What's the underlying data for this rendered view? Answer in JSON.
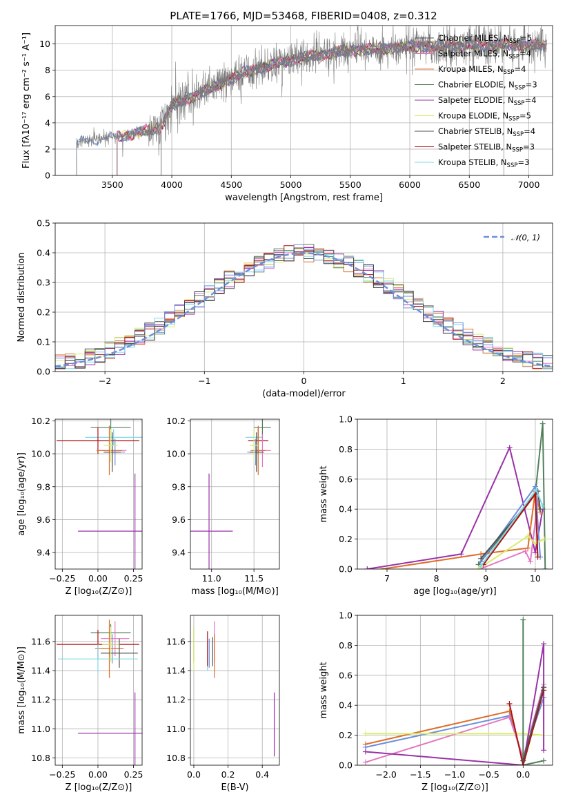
{
  "colors": [
    "#e377c2",
    "#dd6f2a",
    "#507f5a",
    "#9932a8",
    "#d9ec6a",
    "#505050",
    "#b01010",
    "#7fd8e6",
    "#6a8fdc",
    "#7a7a7a"
  ],
  "chart_data": [
    {
      "id": "spectrum",
      "type": "line",
      "title": "PLATE=1766, MJD=53468, FIBERID=0408, z=0.312",
      "xlabel": "wavelength [Angstrom, rest frame]",
      "ylabel": "Flux [fλ10⁻¹⁷ erg cm⁻² s⁻¹ A⁻¹]",
      "xlim": [
        3020,
        7200
      ],
      "ylim": [
        0,
        11.4
      ],
      "xticks": [
        3500,
        4000,
        4500,
        5000,
        5500,
        6000,
        6500,
        7000
      ],
      "yticks": [
        0,
        2,
        4,
        6,
        8,
        10
      ],
      "legend_position": "top-right",
      "data_range": [
        3200,
        7150
      ],
      "continuum_knots": [
        [
          3200,
          2.5
        ],
        [
          3500,
          2.9
        ],
        [
          3700,
          3.2
        ],
        [
          3900,
          3.6
        ],
        [
          4000,
          5.3
        ],
        [
          4300,
          6.5
        ],
        [
          4600,
          7.8
        ],
        [
          5000,
          8.8
        ],
        [
          5500,
          9.5
        ],
        [
          6000,
          9.8
        ],
        [
          6500,
          9.9
        ],
        [
          7150,
          9.9
        ]
      ],
      "legend": [
        {
          "label": "Chabrier MILES, N",
          "sub": "SSP",
          "tail": "=5"
        },
        {
          "label": "Salpeter MILES, N",
          "sub": "SSP",
          "tail": "=4"
        },
        {
          "label": "Kroupa MILES, N",
          "sub": "SSP",
          "tail": "=4"
        },
        {
          "label": "Chabrier ELODIE, N",
          "sub": "SSP",
          "tail": "=3"
        },
        {
          "label": "Salpeter ELODIE, N",
          "sub": "SSP",
          "tail": "=4"
        },
        {
          "label": "Kroupa ELODIE, N",
          "sub": "SSP",
          "tail": "=5"
        },
        {
          "label": "Chabrier STELIB, N",
          "sub": "SSP",
          "tail": "=4"
        },
        {
          "label": "Salpeter STELIB, N",
          "sub": "SSP",
          "tail": "=3"
        },
        {
          "label": "Kroupa STELIB, N",
          "sub": "SSP",
          "tail": "=3"
        }
      ]
    },
    {
      "id": "residuals",
      "type": "histogram",
      "xlabel": "(data-model)/error",
      "ylabel": "Normed distribution",
      "xlim": [
        -2.5,
        2.5
      ],
      "ylim": [
        0,
        0.5
      ],
      "xticks": [
        -2,
        -1,
        0,
        1,
        2
      ],
      "yticks": [
        0.0,
        0.1,
        0.2,
        0.3,
        0.4,
        0.5
      ],
      "legend_position": "top-right",
      "legend": "𝒩(0, 1)",
      "bin_width": 0.1
    },
    {
      "id": "age_vs_Z",
      "type": "errorbar",
      "xlabel": "Z [log₁₀(Z/Z⊙)]",
      "ylabel": "age  [log₁₀(age/yr)]",
      "xlim": [
        -0.3,
        0.31
      ],
      "ylim": [
        9.3,
        10.21
      ],
      "xticks": [
        -0.25,
        0.0,
        0.25
      ],
      "yticks": [
        9.4,
        9.6,
        9.8,
        10.0,
        10.2
      ],
      "points": [
        {
          "c": 2,
          "x": 0.09,
          "y": 10.16,
          "xe": 0.14,
          "ye": 0.08
        },
        {
          "c": 7,
          "x": 0.11,
          "y": 10.1,
          "xe": 0.2,
          "ye": 0.05
        },
        {
          "c": 6,
          "x": 0.0,
          "y": 10.08,
          "xe": 0.29,
          "ye": 0.08
        },
        {
          "c": 0,
          "x": 0.1,
          "y": 10.02,
          "xe": 0.1,
          "ye": 0.1
        },
        {
          "c": 1,
          "x": 0.08,
          "y": 10.02,
          "xe": 0.09,
          "ye": 0.15
        },
        {
          "c": 8,
          "x": 0.12,
          "y": 10.01,
          "xe": 0.07,
          "ye": 0.08
        },
        {
          "c": 5,
          "x": 0.1,
          "y": 10.01,
          "xe": 0.06,
          "ye": 0.12
        },
        {
          "c": 4,
          "x": 0.09,
          "y": 10.05,
          "xe": 0.05,
          "ye": 0.1
        },
        {
          "c": 3,
          "x": 0.26,
          "y": 9.53,
          "xe": 0.4,
          "ye": 0.35
        }
      ]
    },
    {
      "id": "age_vs_mass",
      "type": "errorbar",
      "xlabel": "mass [log₁₀(M/M⊙)]",
      "ylabel": "",
      "xlim": [
        10.75,
        11.8
      ],
      "ylim": [
        9.3,
        10.21
      ],
      "xticks": [
        11.0,
        11.5
      ],
      "yticks": [
        9.4,
        9.6,
        9.8,
        10.0,
        10.2
      ],
      "points": [
        {
          "c": 2,
          "x": 11.6,
          "y": 10.16,
          "xe": 0.1,
          "ye": 0.08
        },
        {
          "c": 7,
          "x": 11.5,
          "y": 10.1,
          "xe": 0.1,
          "ye": 0.05
        },
        {
          "c": 6,
          "x": 11.55,
          "y": 10.08,
          "xe": 0.12,
          "ye": 0.08
        },
        {
          "c": 0,
          "x": 11.6,
          "y": 10.02,
          "xe": 0.1,
          "ye": 0.1
        },
        {
          "c": 1,
          "x": 11.55,
          "y": 10.02,
          "xe": 0.09,
          "ye": 0.15
        },
        {
          "c": 8,
          "x": 11.52,
          "y": 10.01,
          "xe": 0.1,
          "ye": 0.08
        },
        {
          "c": 5,
          "x": 11.53,
          "y": 10.01,
          "xe": 0.08,
          "ye": 0.12
        },
        {
          "c": 4,
          "x": 11.5,
          "y": 10.05,
          "xe": 0.05,
          "ye": 0.1
        },
        {
          "c": 3,
          "x": 10.97,
          "y": 9.53,
          "xe": 0.28,
          "ye": 0.35
        }
      ]
    },
    {
      "id": "weight_vs_age",
      "type": "line",
      "xlabel": "age  [log₁₀(age/yr)]",
      "ylabel": "mass weight",
      "xlim": [
        6.4,
        10.35
      ],
      "ylim": [
        0,
        1
      ],
      "xticks": [
        7,
        8,
        9,
        10
      ],
      "yticks": [
        0.0,
        0.2,
        0.4,
        0.6,
        0.8,
        1.0
      ],
      "series": [
        {
          "c": 3,
          "x": [
            6.6,
            8.5,
            9.48,
            10.0,
            10.15
          ],
          "y": [
            0.0,
            0.1,
            0.81,
            0.11,
            0.4
          ]
        },
        {
          "c": 2,
          "x": [
            8.85,
            10.0,
            10.15,
            10.2
          ],
          "y": [
            0.03,
            0.5,
            0.97,
            0.0
          ]
        },
        {
          "c": 1,
          "x": [
            6.9,
            8.9,
            9.85,
            10.0,
            10.1
          ],
          "y": [
            0.0,
            0.1,
            0.14,
            0.52,
            0.38
          ]
        },
        {
          "c": 0,
          "x": [
            8.88,
            9.8,
            9.9,
            10.05
          ],
          "y": [
            0.0,
            0.12,
            0.05,
            0.45
          ]
        },
        {
          "c": 8,
          "x": [
            8.9,
            10.0,
            10.1
          ],
          "y": [
            0.05,
            0.55,
            0.08
          ]
        },
        {
          "c": 4,
          "x": [
            8.85,
            9.85,
            10.0,
            10.18
          ],
          "y": [
            0.0,
            0.22,
            0.17,
            0.2
          ]
        },
        {
          "c": 5,
          "x": [
            8.9,
            10.05,
            10.1
          ],
          "y": [
            0.07,
            0.52,
            0.4
          ]
        },
        {
          "c": 6,
          "x": [
            8.95,
            10.0,
            10.05
          ],
          "y": [
            0.03,
            0.5,
            0.08
          ]
        },
        {
          "c": 7,
          "x": [
            8.9,
            10.02,
            10.15
          ],
          "y": [
            0.02,
            0.53,
            0.42
          ]
        }
      ]
    },
    {
      "id": "mass_vs_Z",
      "type": "errorbar",
      "xlabel": "Z [log₁₀(Z/Z⊙)]",
      "ylabel": "mass [log₁₀(M/M⊙)]",
      "xlim": [
        -0.3,
        0.31
      ],
      "ylim": [
        10.75,
        11.78
      ],
      "xticks": [
        -0.25,
        0.0,
        0.25
      ],
      "yticks": [
        10.8,
        11.0,
        11.2,
        11.4,
        11.6
      ],
      "points": [
        {
          "c": 2,
          "x": 0.09,
          "y": 11.66,
          "xe": 0.14,
          "ye": 0.06
        },
        {
          "c": 0,
          "x": 0.12,
          "y": 11.62,
          "xe": 0.1,
          "ye": 0.12
        },
        {
          "c": 6,
          "x": 0.0,
          "y": 11.58,
          "xe": 0.29,
          "ye": 0.1
        },
        {
          "c": 8,
          "x": 0.1,
          "y": 11.55,
          "xe": 0.08,
          "ye": 0.1
        },
        {
          "c": 1,
          "x": 0.08,
          "y": 11.55,
          "xe": 0.1,
          "ye": 0.2
        },
        {
          "c": 5,
          "x": 0.15,
          "y": 11.52,
          "xe": 0.13,
          "ye": 0.1
        },
        {
          "c": 7,
          "x": 0.0,
          "y": 11.48,
          "xe": 0.28,
          "ye": 0.1
        },
        {
          "c": 4,
          "x": 0.09,
          "y": 11.58,
          "xe": 0.06,
          "ye": 0.12
        },
        {
          "c": 3,
          "x": 0.26,
          "y": 10.97,
          "xe": 0.4,
          "ye": 0.28
        }
      ]
    },
    {
      "id": "mass_vs_ebv",
      "type": "errorbar",
      "xlabel": "E(B-V)",
      "ylabel": "",
      "xlim": [
        -0.02,
        0.5
      ],
      "ylim": [
        10.75,
        11.78
      ],
      "xticks": [
        0.0,
        0.2,
        0.4
      ],
      "yticks": [
        10.8,
        11.0,
        11.2,
        11.4,
        11.6
      ],
      "points": [
        {
          "c": 2,
          "x": 0.0,
          "y": 11.58,
          "xe": 0.0,
          "ye": 0.12
        },
        {
          "c": 4,
          "x": 0.0,
          "y": 11.55,
          "xe": 0.0,
          "ye": 0.15
        },
        {
          "c": 7,
          "x": 0.08,
          "y": 11.5,
          "xe": 0.0,
          "ye": 0.1
        },
        {
          "c": 6,
          "x": 0.08,
          "y": 11.55,
          "xe": 0.0,
          "ye": 0.12
        },
        {
          "c": 8,
          "x": 0.09,
          "y": 11.52,
          "xe": 0.0,
          "ye": 0.1
        },
        {
          "c": 0,
          "x": 0.12,
          "y": 11.6,
          "xe": 0.0,
          "ye": 0.14
        },
        {
          "c": 1,
          "x": 0.12,
          "y": 11.5,
          "xe": 0.0,
          "ye": 0.15
        },
        {
          "c": 5,
          "x": 0.11,
          "y": 11.53,
          "xe": 0.0,
          "ye": 0.1
        },
        {
          "c": 3,
          "x": 0.47,
          "y": 11.03,
          "xe": 0.0,
          "ye": 0.22
        }
      ]
    },
    {
      "id": "weight_vs_Z",
      "type": "line",
      "xlabel": "Z [log₁₀(Z/Z⊙)]",
      "ylabel": "mass weight",
      "xlim": [
        -2.42,
        0.43
      ],
      "ylim": [
        0,
        1
      ],
      "xticks": [
        -2.0,
        -1.5,
        -1.0,
        -0.5,
        0.0
      ],
      "yticks": [
        0.0,
        0.2,
        0.4,
        0.6,
        0.8,
        1.0
      ],
      "series": [
        {
          "c": 1,
          "x": [
            -2.3,
            -0.2,
            0.0,
            0.3
          ],
          "y": [
            0.14,
            0.36,
            0.03,
            0.52
          ]
        },
        {
          "c": 8,
          "x": [
            -2.3,
            -0.2,
            0.0,
            0.3
          ],
          "y": [
            0.12,
            0.33,
            0.05,
            0.45
          ]
        },
        {
          "c": 0,
          "x": [
            -2.3,
            -0.2,
            0.0,
            0.3
          ],
          "y": [
            0.02,
            0.32,
            0.05,
            0.54
          ]
        },
        {
          "c": 4,
          "x": [
            -2.3,
            0.0,
            0.3
          ],
          "y": [
            0.21,
            0.21,
            0.2
          ]
        },
        {
          "c": 3,
          "x": [
            -2.3,
            0.0,
            0.3,
            0.3
          ],
          "y": [
            0.09,
            0.0,
            0.81,
            0.1
          ]
        },
        {
          "c": 2,
          "x": [
            0.0,
            0.0,
            0.3
          ],
          "y": [
            0.97,
            0.0,
            0.03
          ]
        },
        {
          "c": 6,
          "x": [
            -0.2,
            0.0,
            0.3
          ],
          "y": [
            0.41,
            0.0,
            0.5
          ]
        },
        {
          "c": 5,
          "x": [
            0.0,
            0.3
          ],
          "y": [
            0.03,
            0.52
          ]
        }
      ]
    }
  ]
}
